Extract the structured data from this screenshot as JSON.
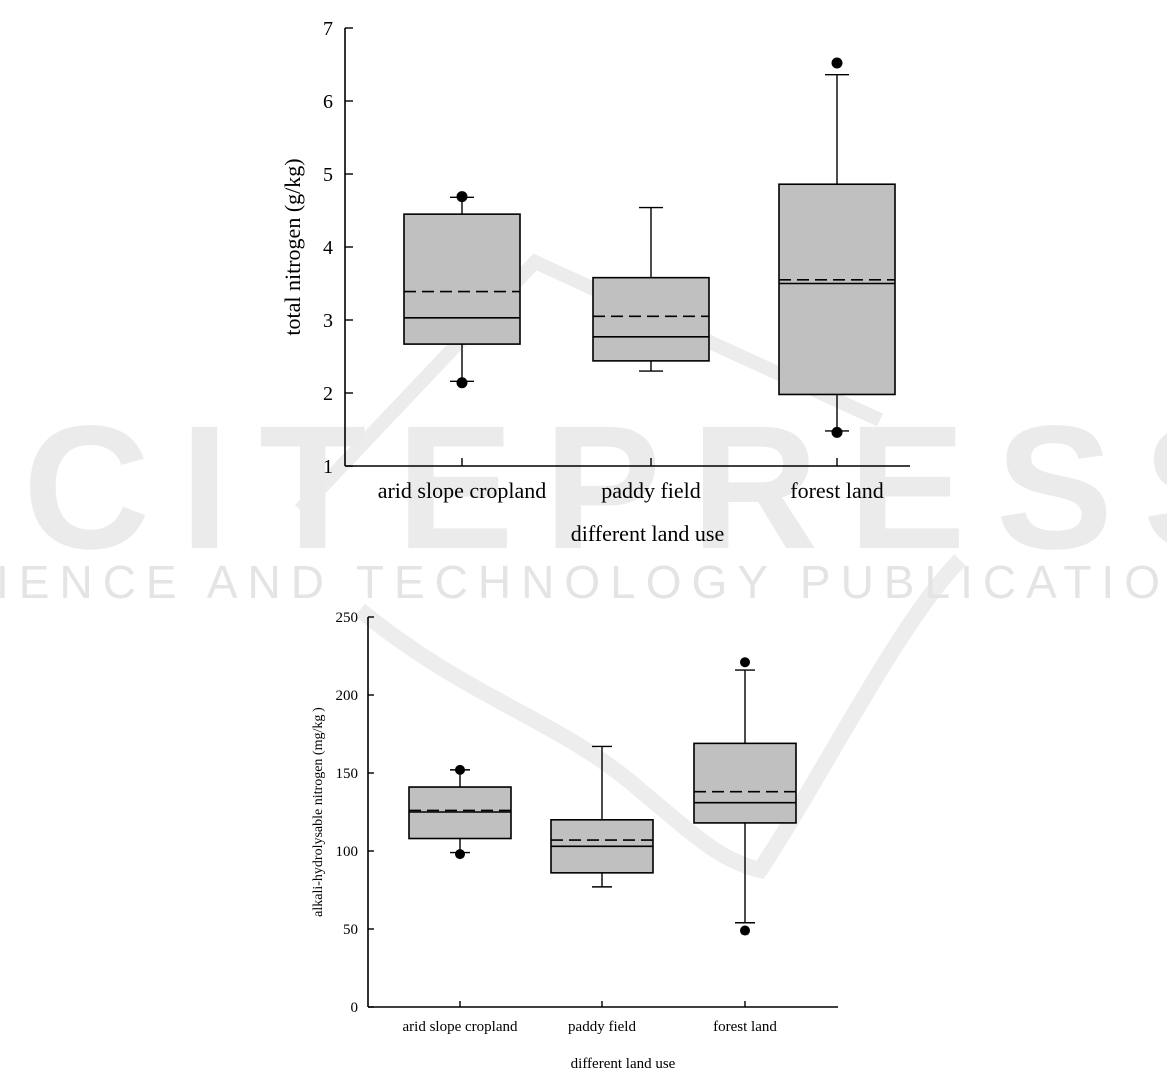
{
  "watermark": {
    "brand": "SCITEPRESS",
    "tagline": "SCIENCE AND TECHNOLOGY PUBLICATIONS"
  },
  "chart_data": [
    {
      "type": "box",
      "title": "",
      "xlabel": "different land use",
      "ylabel": "total nitrogen (g/kg)",
      "ylim": [
        1,
        7
      ],
      "yticks": [
        1,
        2,
        3,
        4,
        5,
        6,
        7
      ],
      "categories": [
        "arid slope cropland",
        "paddy field",
        "forest land"
      ],
      "boxes": [
        {
          "category": "arid slope cropland",
          "q1": 2.67,
          "median": 3.03,
          "mean": 3.39,
          "q3": 4.45,
          "whisker_low": 2.16,
          "whisker_high": 4.68,
          "outliers": [
            2.14,
            4.69
          ]
        },
        {
          "category": "paddy field",
          "q1": 2.44,
          "median": 2.77,
          "mean": 3.05,
          "q3": 3.58,
          "whisker_low": 2.3,
          "whisker_high": 4.54,
          "outliers": []
        },
        {
          "category": "forest land",
          "q1": 1.98,
          "median": 3.5,
          "mean": 3.55,
          "q3": 4.86,
          "whisker_low": 1.48,
          "whisker_high": 6.36,
          "outliers": [
            1.46,
            6.52
          ]
        }
      ],
      "grid": false,
      "legend": "none"
    },
    {
      "type": "box",
      "title": "",
      "xlabel": "different land use",
      "ylabel": "alkali-hydrolysable nitrogen (mg/kg )",
      "ylim": [
        0,
        250
      ],
      "yticks": [
        0,
        50,
        100,
        150,
        200,
        250
      ],
      "categories": [
        "arid slope cropland",
        "paddy field",
        "forest land"
      ],
      "boxes": [
        {
          "category": "arid slope cropland",
          "q1": 108,
          "median": 125,
          "mean": 126,
          "q3": 141,
          "whisker_low": 99,
          "whisker_high": 152,
          "outliers": [
            98,
            152
          ]
        },
        {
          "category": "paddy field",
          "q1": 86,
          "median": 103,
          "mean": 107,
          "q3": 120,
          "whisker_low": 77,
          "whisker_high": 167,
          "outliers": []
        },
        {
          "category": "forest land",
          "q1": 118,
          "median": 131,
          "mean": 138,
          "q3": 169,
          "whisker_low": 54,
          "whisker_high": 216,
          "outliers": [
            49,
            221
          ]
        }
      ],
      "grid": false,
      "legend": "none"
    }
  ]
}
